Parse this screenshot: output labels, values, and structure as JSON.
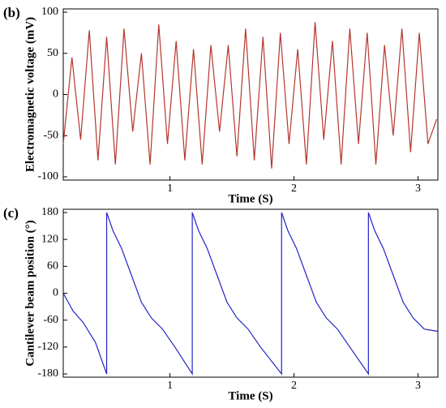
{
  "chart_data": [
    {
      "type": "line",
      "panel_label": "(b)",
      "xlabel": "Time  (S)",
      "ylabel": "Electromagnetic voltage (mV)",
      "xlim": [
        0.14,
        3.16
      ],
      "ylim": [
        -100,
        100
      ],
      "xticks": [
        1,
        2,
        3
      ],
      "yticks": [
        -100,
        -50,
        0,
        50,
        100
      ],
      "series": [
        {
          "color": "#b5362c",
          "x": [
            0.14,
            0.21,
            0.28,
            0.35,
            0.42,
            0.49,
            0.56,
            0.63,
            0.7,
            0.77,
            0.84,
            0.91,
            0.98,
            1.05,
            1.12,
            1.19,
            1.26,
            1.33,
            1.4,
            1.47,
            1.54,
            1.61,
            1.68,
            1.75,
            1.82,
            1.89,
            1.96,
            2.03,
            2.1,
            2.17,
            2.24,
            2.31,
            2.38,
            2.45,
            2.52,
            2.59,
            2.66,
            2.73,
            2.8,
            2.87,
            2.94,
            3.01,
            3.08,
            3.15
          ],
          "values": [
            -60,
            45,
            -55,
            78,
            -80,
            70,
            -85,
            80,
            -45,
            50,
            -85,
            85,
            -60,
            65,
            -80,
            55,
            -85,
            60,
            -45,
            60,
            -75,
            80,
            -80,
            70,
            -90,
            75,
            -60,
            55,
            -85,
            88,
            -55,
            65,
            -85,
            80,
            -60,
            75,
            -85,
            60,
            -50,
            80,
            -70,
            75,
            -60,
            -30
          ]
        }
      ]
    },
    {
      "type": "line",
      "panel_label": "(c)",
      "xlabel": "Time  (S)",
      "ylabel": "Cantilever beam position (°)",
      "xlim": [
        0.14,
        3.16
      ],
      "ylim": [
        -180,
        180
      ],
      "xticks": [
        1,
        2,
        3
      ],
      "yticks": [
        -180,
        -120,
        -60,
        0,
        60,
        120,
        180
      ],
      "series": [
        {
          "color": "#2323c8",
          "x": [
            0.14,
            0.22,
            0.3,
            0.4,
            0.49,
            0.49,
            0.54,
            0.61,
            0.69,
            0.77,
            0.85,
            0.94,
            1.04,
            1.18,
            1.18,
            1.23,
            1.3,
            1.38,
            1.46,
            1.54,
            1.63,
            1.73,
            1.9,
            1.9,
            1.95,
            2.02,
            2.1,
            2.18,
            2.26,
            2.35,
            2.45,
            2.6,
            2.6,
            2.65,
            2.72,
            2.8,
            2.88,
            2.96,
            3.05,
            3.16
          ],
          "values": [
            0,
            -40,
            -65,
            -110,
            -180,
            180,
            140,
            100,
            40,
            -20,
            -55,
            -80,
            -120,
            -180,
            180,
            140,
            100,
            40,
            -20,
            -55,
            -80,
            -120,
            -180,
            180,
            140,
            100,
            40,
            -20,
            -55,
            -80,
            -120,
            -180,
            180,
            140,
            100,
            40,
            -20,
            -55,
            -80,
            -85
          ]
        }
      ]
    }
  ]
}
